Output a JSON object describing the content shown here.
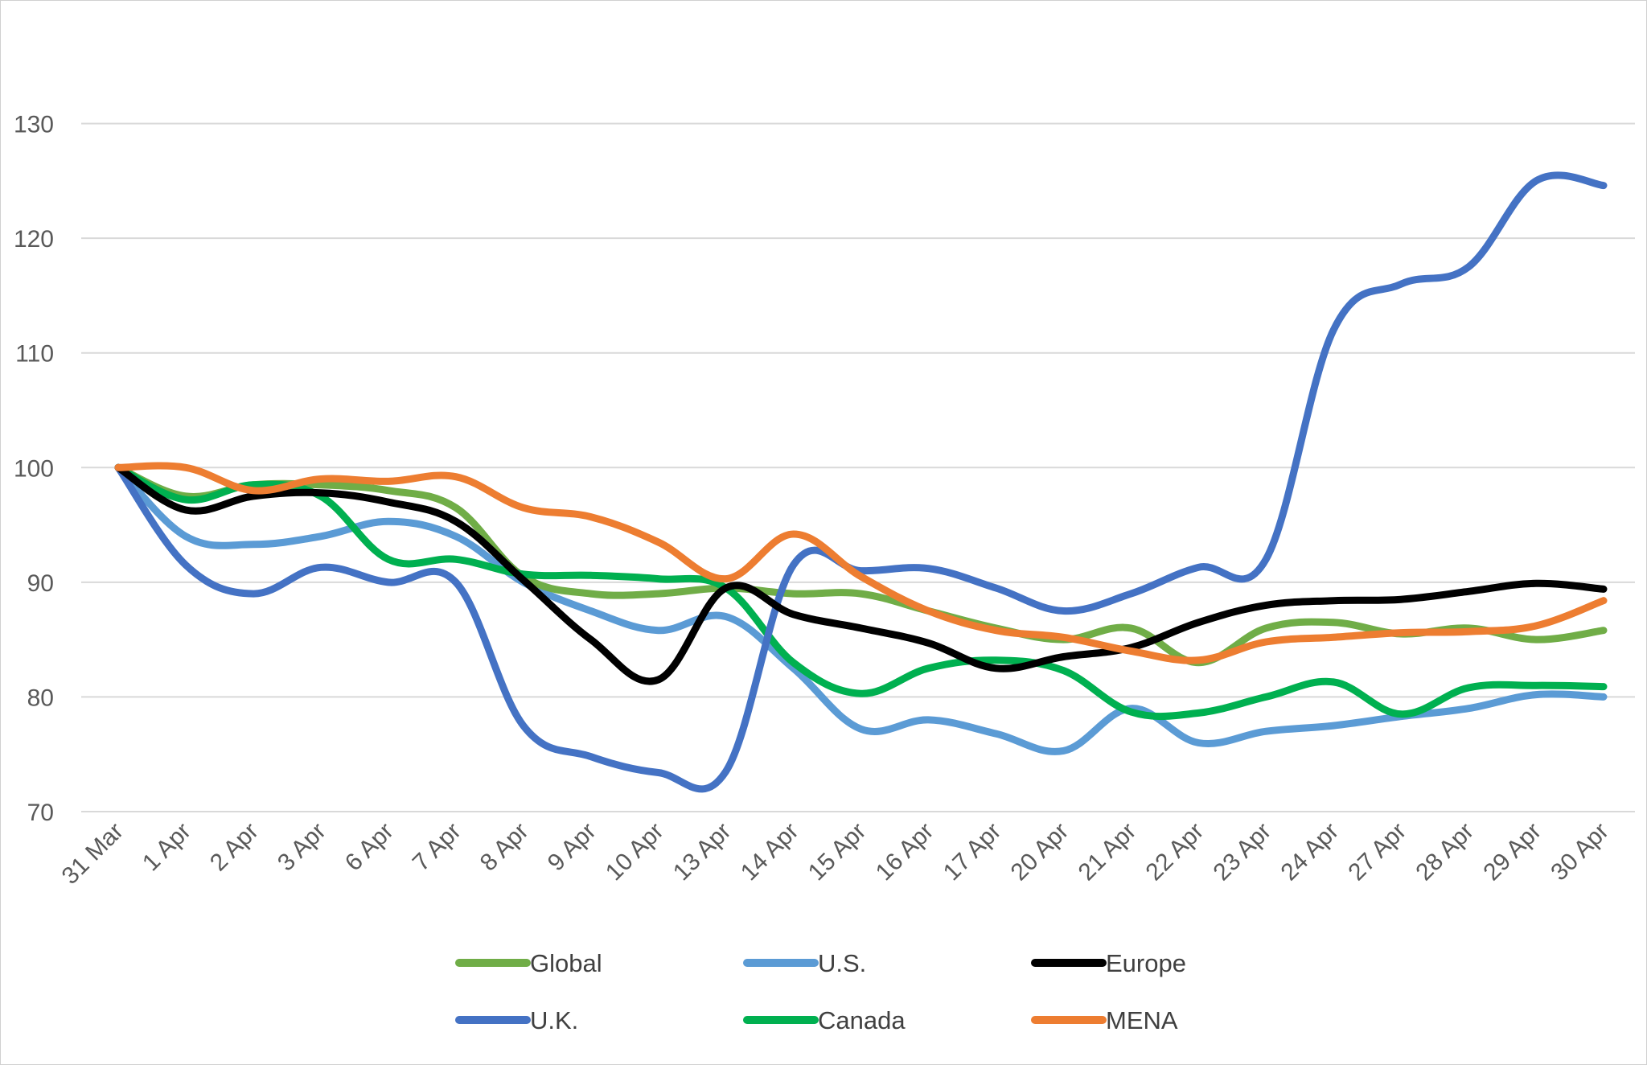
{
  "chart_data": {
    "type": "line",
    "title": "",
    "xlabel": "",
    "ylabel": "",
    "categories": [
      "31 Mar",
      "1 Apr",
      "2 Apr",
      "3 Apr",
      "6 Apr",
      "7 Apr",
      "8 Apr",
      "9 Apr",
      "10 Apr",
      "13 Apr",
      "14 Apr",
      "15 Apr",
      "16 Apr",
      "17 Apr",
      "20 Apr",
      "21 Apr",
      "22 Apr",
      "23 Apr",
      "24 Apr",
      "27 Apr",
      "28 Apr",
      "29 Apr",
      "30 Apr"
    ],
    "ylim": [
      70,
      140
    ],
    "yticks": [
      70,
      80,
      90,
      100,
      110,
      120,
      130
    ],
    "grid": true,
    "legend_position": "bottom",
    "series": [
      {
        "name": "Global",
        "color": "#70ad47",
        "values": [
          100,
          97.5,
          98.5,
          98.5,
          98.0,
          96.5,
          90.5,
          89.0,
          89.0,
          89.5,
          89.0,
          89.0,
          87.5,
          86.0,
          85.0,
          86.0,
          83.0,
          86.0,
          86.5,
          85.5,
          86.0,
          85.0,
          85.8
        ]
      },
      {
        "name": "U.S.",
        "color": "#5b9bd5",
        "values": [
          100,
          94.0,
          93.3,
          94.0,
          95.3,
          94.0,
          90.0,
          87.5,
          85.8,
          87.0,
          82.5,
          77.2,
          78.0,
          76.8,
          75.3,
          79.0,
          76.0,
          77.0,
          77.5,
          78.3,
          79.0,
          80.2,
          80.0
        ]
      },
      {
        "name": "Europe",
        "color": "#000000",
        "values": [
          100,
          96.3,
          97.5,
          97.8,
          97.0,
          95.3,
          90.2,
          85.0,
          81.5,
          89.5,
          87.2,
          86.0,
          84.7,
          82.5,
          83.5,
          84.3,
          86.5,
          88.0,
          88.4,
          88.5,
          89.2,
          89.9,
          89.4
        ]
      },
      {
        "name": "U.K.",
        "color": "#4472c4",
        "values": [
          100,
          91.5,
          89.0,
          91.3,
          90.0,
          90.0,
          77.5,
          74.8,
          73.4,
          73.5,
          91.5,
          91.0,
          91.2,
          89.5,
          87.5,
          89.0,
          91.3,
          92.0,
          112.0,
          116.0,
          117.5,
          125.0,
          124.6
        ]
      },
      {
        "name": "Canada",
        "color": "#00b050",
        "values": [
          100,
          97.2,
          98.5,
          97.5,
          92.0,
          92.0,
          90.7,
          90.6,
          90.3,
          89.5,
          83.0,
          80.3,
          82.5,
          83.2,
          82.3,
          78.7,
          78.6,
          80.0,
          81.3,
          78.5,
          80.8,
          81.0,
          80.9
        ]
      },
      {
        "name": "MENA",
        "color": "#ed7d31",
        "values": [
          100,
          100.0,
          98.0,
          99.0,
          98.8,
          99.2,
          96.5,
          95.7,
          93.5,
          90.3,
          94.2,
          90.5,
          87.5,
          85.8,
          85.2,
          84.0,
          83.2,
          84.8,
          85.2,
          85.6,
          85.7,
          86.2,
          88.4
        ]
      }
    ]
  }
}
